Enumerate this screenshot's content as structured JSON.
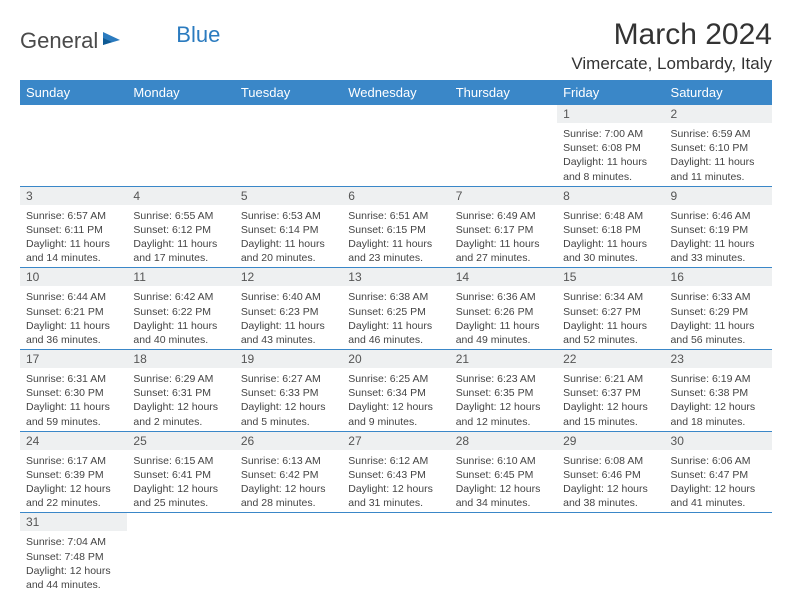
{
  "logo": {
    "general": "General",
    "blue": "Blue"
  },
  "title": "March 2024",
  "location": "Vimercate, Lombardy, Italy",
  "colors": {
    "header_bg": "#3a87c8",
    "header_fg": "#ffffff",
    "daynum_bg": "#eef0f1",
    "border": "#3a87c8",
    "logo_blue": "#2b7bbf",
    "text": "#333333"
  },
  "weekdays": [
    "Sunday",
    "Monday",
    "Tuesday",
    "Wednesday",
    "Thursday",
    "Friday",
    "Saturday"
  ],
  "weeks": [
    [
      null,
      null,
      null,
      null,
      null,
      {
        "n": "1",
        "sr": "7:00 AM",
        "ss": "6:08 PM",
        "dl": "11 hours and 8 minutes."
      },
      {
        "n": "2",
        "sr": "6:59 AM",
        "ss": "6:10 PM",
        "dl": "11 hours and 11 minutes."
      }
    ],
    [
      {
        "n": "3",
        "sr": "6:57 AM",
        "ss": "6:11 PM",
        "dl": "11 hours and 14 minutes."
      },
      {
        "n": "4",
        "sr": "6:55 AM",
        "ss": "6:12 PM",
        "dl": "11 hours and 17 minutes."
      },
      {
        "n": "5",
        "sr": "6:53 AM",
        "ss": "6:14 PM",
        "dl": "11 hours and 20 minutes."
      },
      {
        "n": "6",
        "sr": "6:51 AM",
        "ss": "6:15 PM",
        "dl": "11 hours and 23 minutes."
      },
      {
        "n": "7",
        "sr": "6:49 AM",
        "ss": "6:17 PM",
        "dl": "11 hours and 27 minutes."
      },
      {
        "n": "8",
        "sr": "6:48 AM",
        "ss": "6:18 PM",
        "dl": "11 hours and 30 minutes."
      },
      {
        "n": "9",
        "sr": "6:46 AM",
        "ss": "6:19 PM",
        "dl": "11 hours and 33 minutes."
      }
    ],
    [
      {
        "n": "10",
        "sr": "6:44 AM",
        "ss": "6:21 PM",
        "dl": "11 hours and 36 minutes."
      },
      {
        "n": "11",
        "sr": "6:42 AM",
        "ss": "6:22 PM",
        "dl": "11 hours and 40 minutes."
      },
      {
        "n": "12",
        "sr": "6:40 AM",
        "ss": "6:23 PM",
        "dl": "11 hours and 43 minutes."
      },
      {
        "n": "13",
        "sr": "6:38 AM",
        "ss": "6:25 PM",
        "dl": "11 hours and 46 minutes."
      },
      {
        "n": "14",
        "sr": "6:36 AM",
        "ss": "6:26 PM",
        "dl": "11 hours and 49 minutes."
      },
      {
        "n": "15",
        "sr": "6:34 AM",
        "ss": "6:27 PM",
        "dl": "11 hours and 52 minutes."
      },
      {
        "n": "16",
        "sr": "6:33 AM",
        "ss": "6:29 PM",
        "dl": "11 hours and 56 minutes."
      }
    ],
    [
      {
        "n": "17",
        "sr": "6:31 AM",
        "ss": "6:30 PM",
        "dl": "11 hours and 59 minutes."
      },
      {
        "n": "18",
        "sr": "6:29 AM",
        "ss": "6:31 PM",
        "dl": "12 hours and 2 minutes."
      },
      {
        "n": "19",
        "sr": "6:27 AM",
        "ss": "6:33 PM",
        "dl": "12 hours and 5 minutes."
      },
      {
        "n": "20",
        "sr": "6:25 AM",
        "ss": "6:34 PM",
        "dl": "12 hours and 9 minutes."
      },
      {
        "n": "21",
        "sr": "6:23 AM",
        "ss": "6:35 PM",
        "dl": "12 hours and 12 minutes."
      },
      {
        "n": "22",
        "sr": "6:21 AM",
        "ss": "6:37 PM",
        "dl": "12 hours and 15 minutes."
      },
      {
        "n": "23",
        "sr": "6:19 AM",
        "ss": "6:38 PM",
        "dl": "12 hours and 18 minutes."
      }
    ],
    [
      {
        "n": "24",
        "sr": "6:17 AM",
        "ss": "6:39 PM",
        "dl": "12 hours and 22 minutes."
      },
      {
        "n": "25",
        "sr": "6:15 AM",
        "ss": "6:41 PM",
        "dl": "12 hours and 25 minutes."
      },
      {
        "n": "26",
        "sr": "6:13 AM",
        "ss": "6:42 PM",
        "dl": "12 hours and 28 minutes."
      },
      {
        "n": "27",
        "sr": "6:12 AM",
        "ss": "6:43 PM",
        "dl": "12 hours and 31 minutes."
      },
      {
        "n": "28",
        "sr": "6:10 AM",
        "ss": "6:45 PM",
        "dl": "12 hours and 34 minutes."
      },
      {
        "n": "29",
        "sr": "6:08 AM",
        "ss": "6:46 PM",
        "dl": "12 hours and 38 minutes."
      },
      {
        "n": "30",
        "sr": "6:06 AM",
        "ss": "6:47 PM",
        "dl": "12 hours and 41 minutes."
      }
    ],
    [
      {
        "n": "31",
        "sr": "7:04 AM",
        "ss": "7:48 PM",
        "dl": "12 hours and 44 minutes."
      },
      null,
      null,
      null,
      null,
      null,
      null
    ]
  ],
  "labels": {
    "sunrise": "Sunrise:",
    "sunset": "Sunset:",
    "daylight": "Daylight:"
  }
}
